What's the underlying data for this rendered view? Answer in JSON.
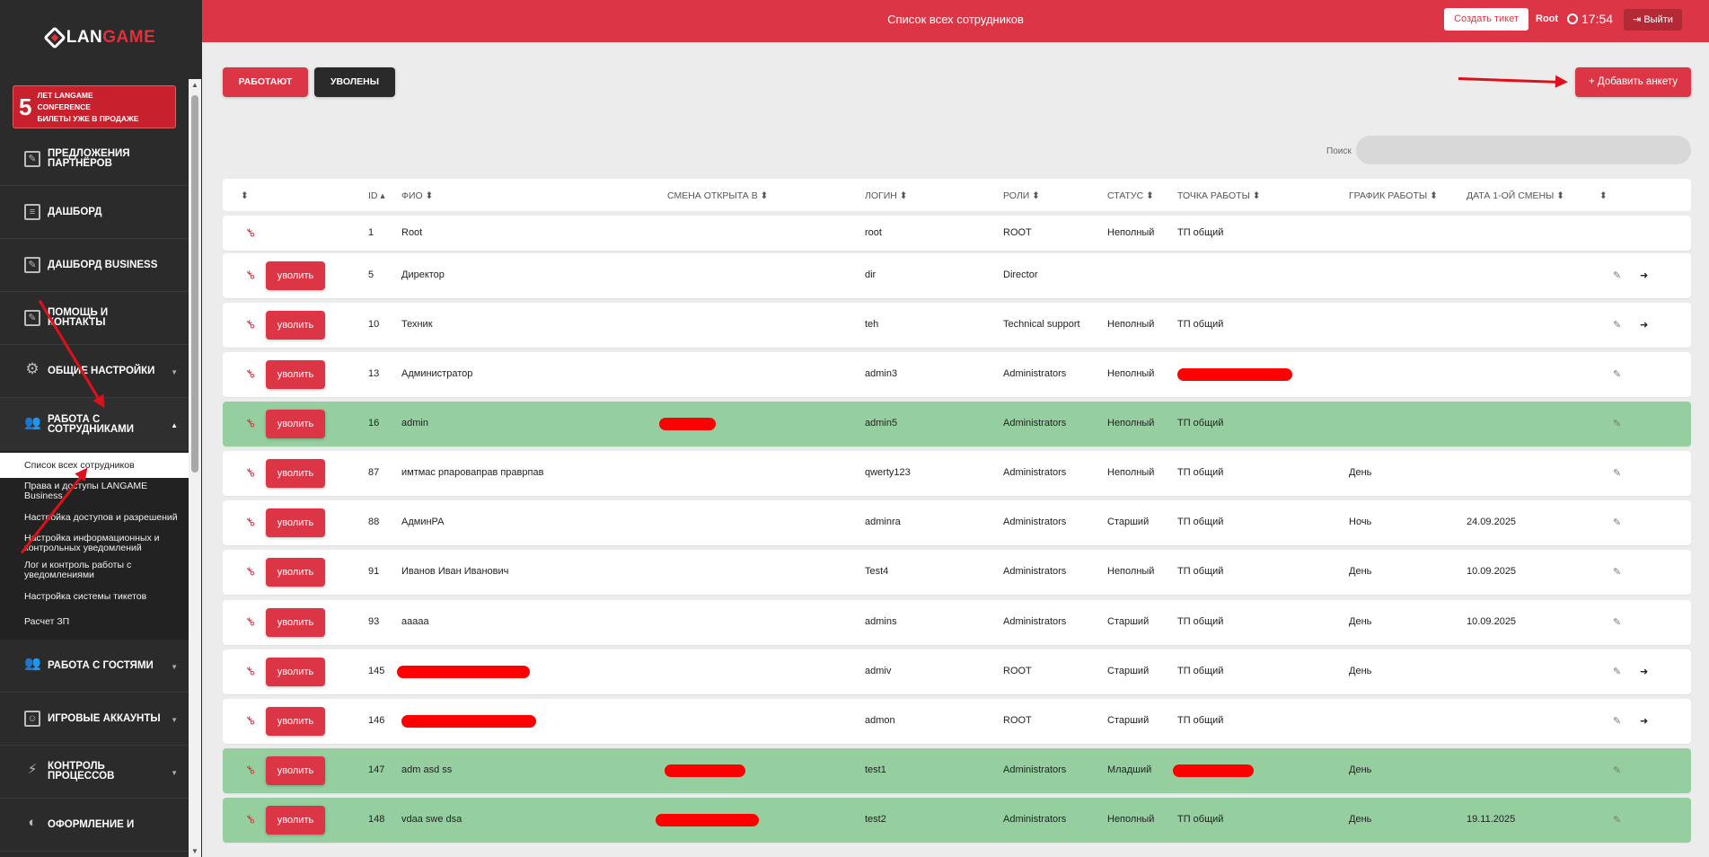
{
  "sidebar": {
    "logo_left": "LAN",
    "logo_right": "GAME",
    "promo": {
      "number": "5",
      "line1": "ЛЕТ LANGAME",
      "line2": "CONFERENCE",
      "line3": "БИЛЕТЫ УЖЕ В ПРОДАЖЕ"
    },
    "items_top": [
      {
        "label": "Предложения партнёров",
        "icon": "edit-icon"
      },
      {
        "label": "Дашборд",
        "icon": "document-icon"
      },
      {
        "label": "Дашборд BUSINESS",
        "icon": "edit-icon"
      },
      {
        "label": "Помощь и контакты",
        "icon": "edit-icon"
      },
      {
        "label": "Общие настройки",
        "icon": "gear-icon"
      },
      {
        "label": "Работа с сотрудниками",
        "icon": "users-icon"
      }
    ],
    "sub_items": [
      "Список всех сотрудников",
      "Права и доступы LANGAME Business",
      "Настройка доступов и разрешений",
      "Настройка информационных и контрольных уведомлений",
      "Лог и контроль работы с уведомлениями",
      "Настройка системы тикетов",
      "Расчет ЗП"
    ],
    "items_bottom": [
      {
        "label": "Работа с гостями",
        "icon": "users-icon"
      },
      {
        "label": "Игровые аккаунты",
        "icon": "account-icon"
      },
      {
        "label": "Контроль процессов",
        "icon": "bolt-icon"
      },
      {
        "label": "Оформление и",
        "icon": "palette-icon"
      }
    ]
  },
  "header": {
    "title": "Список всех сотрудников",
    "ticket_button": "Создать тикет",
    "user": "Root",
    "time": "17:54",
    "logout": "Выйти"
  },
  "tabs": {
    "working": "Работают",
    "fired": "Уволены"
  },
  "add_button": "+ Добавить анкету",
  "search": {
    "label": "Поиск",
    "value": "",
    "placeholder": ""
  },
  "table": {
    "headers": {
      "id": "ID",
      "fio": "ФИО",
      "shift": "Смена открыта в",
      "login": "Логин",
      "roles": "Роли",
      "status": "Статус",
      "point": "Точка работы",
      "schedule": "График работы",
      "first_shift": "Дата 1-ой смены"
    },
    "fire_label": "уволить",
    "rows": [
      {
        "id": "1",
        "fio": "Root",
        "login": "root",
        "role": "ROOT",
        "status": "Неполный",
        "point": "ТП общий",
        "schedule": "",
        "date": "",
        "green": false,
        "fire": false
      },
      {
        "id": "5",
        "fio": "Директор",
        "login": "dir",
        "role": "Director",
        "status": "",
        "point": "",
        "schedule": "",
        "date": "",
        "green": false,
        "fire": true
      },
      {
        "id": "10",
        "fio": "Техник",
        "login": "teh",
        "role": "Technical support",
        "status": "Неполный",
        "point": "ТП общий",
        "schedule": "",
        "date": "",
        "green": false,
        "fire": true
      },
      {
        "id": "13",
        "fio": "Администратор",
        "login": "admin3",
        "role": "Administrators",
        "status": "Неполный",
        "point": "",
        "schedule": "",
        "date": "",
        "green": false,
        "fire": true
      },
      {
        "id": "16",
        "fio": "admin",
        "login": "admin5",
        "role": "Administrators",
        "status": "Неполный",
        "point": "ТП общий",
        "schedule": "",
        "date": "",
        "green": true,
        "fire": true
      },
      {
        "id": "87",
        "fio": "имтмас рпароваправ праврпав",
        "login": "qwerty123",
        "role": "Administrators",
        "status": "Неполный",
        "point": "ТП общий",
        "schedule": "День",
        "date": "",
        "green": false,
        "fire": true
      },
      {
        "id": "88",
        "fio": "АдминРА",
        "login": "adminra",
        "role": "Administrators",
        "status": "Старший",
        "point": "ТП общий",
        "schedule": "Ночь",
        "date": "24.09.2025",
        "green": false,
        "fire": true
      },
      {
        "id": "91",
        "fio": "Иванов Иван Иванович",
        "login": "Test4",
        "role": "Administrators",
        "status": "Неполный",
        "point": "ТП общий",
        "schedule": "День",
        "date": "10.09.2025",
        "green": false,
        "fire": true
      },
      {
        "id": "93",
        "fio": "ааааа",
        "login": "admins",
        "role": "Administrators",
        "status": "Старший",
        "point": "ТП общий",
        "schedule": "День",
        "date": "10.09.2025",
        "green": false,
        "fire": true
      },
      {
        "id": "145",
        "fio": "",
        "login": "admiv",
        "role": "ROOT",
        "status": "Старший",
        "point": "ТП общий",
        "schedule": "День",
        "date": "",
        "green": false,
        "fire": true
      },
      {
        "id": "146",
        "fio": "",
        "login": "admon",
        "role": "ROOT",
        "status": "Старший",
        "point": "ТП общий",
        "schedule": "",
        "date": "",
        "green": false,
        "fire": true
      },
      {
        "id": "147",
        "fio": "adm asd ss",
        "login": "test1",
        "role": "Administrators",
        "status": "Младший",
        "point": "",
        "schedule": "День",
        "date": "",
        "green": true,
        "fire": true
      },
      {
        "id": "148",
        "fio": "vdaa swe dsa",
        "login": "test2",
        "role": "Administrators",
        "status": "Неполный",
        "point": "ТП общий",
        "schedule": "День",
        "date": "19.11.2025",
        "green": true,
        "fire": true
      }
    ]
  },
  "colors": {
    "accent": "#dc3545",
    "sidebar": "#2b2b2b",
    "row_highlight": "#95cfa0"
  }
}
